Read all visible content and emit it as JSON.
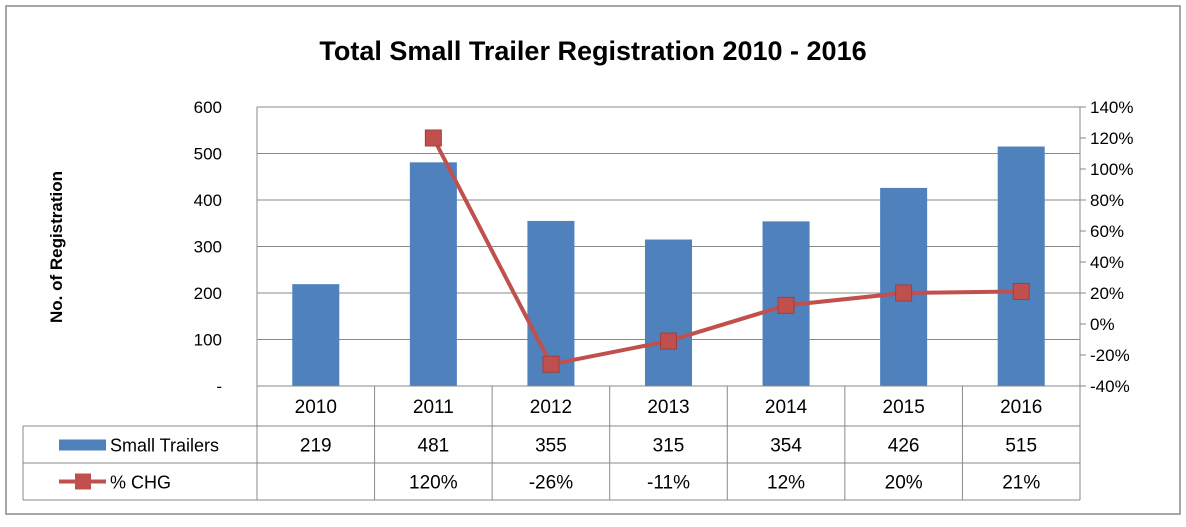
{
  "chart_data": {
    "type": "bar",
    "title": "Total Small Trailer Registration 2010 - 2016",
    "ylabel": "No. of Registration",
    "xlabel": "",
    "categories": [
      "2010",
      "2011",
      "2012",
      "2013",
      "2014",
      "2015",
      "2016"
    ],
    "ylim": [
      0,
      600
    ],
    "y_ticks": [
      "-",
      "100",
      "200",
      "300",
      "400",
      "500",
      "600"
    ],
    "y2lim": [
      -0.4,
      1.4
    ],
    "y2_ticks": [
      "-40%",
      "-20%",
      "0%",
      "20%",
      "40%",
      "60%",
      "80%",
      "100%",
      "120%",
      "140%"
    ],
    "series": [
      {
        "name": "Small Trailers",
        "kind": "bar",
        "axis": "left",
        "color": "#4F81BD",
        "values": [
          219,
          481,
          355,
          315,
          354,
          426,
          515
        ],
        "labels": [
          "219",
          "481",
          "355",
          "315",
          "354",
          "426",
          "515"
        ]
      },
      {
        "name": "% CHG",
        "kind": "line",
        "axis": "right",
        "color": "#C0504D",
        "marker": "square",
        "values": [
          null,
          1.2,
          -0.26,
          -0.11,
          0.12,
          0.2,
          0.21
        ],
        "labels": [
          "",
          "120%",
          "-26%",
          "-11%",
          "12%",
          "20%",
          "21%"
        ]
      }
    ],
    "grid": "horizontal",
    "legend": "data-table",
    "data_table": true
  }
}
